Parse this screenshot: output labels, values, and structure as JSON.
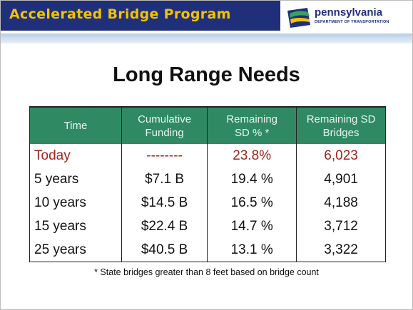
{
  "header": {
    "title": "Accelerated Bridge Program",
    "logo": {
      "name": "pennsylvania",
      "subtitle": "DEPARTMENT OF TRANSPORTATION"
    }
  },
  "slide": {
    "title": "Long Range Needs",
    "table": {
      "columns": [
        [
          "Time"
        ],
        [
          "Cumulative",
          "Funding"
        ],
        [
          "Remaining",
          "SD % *"
        ],
        [
          "Remaining SD",
          "Bridges"
        ]
      ],
      "rows": [
        [
          "Today",
          "--------",
          "23.8%",
          "6,023"
        ],
        [
          "5 years",
          "$7.1 B",
          "19.4 %",
          "4,901"
        ],
        [
          "10 years",
          "$14.5 B",
          "16.5 %",
          "4,188"
        ],
        [
          "15 years",
          "$22.4 B",
          "14.7 %",
          "3,712"
        ],
        [
          "25 years",
          "$40.5 B",
          "13.1 %",
          "3,322"
        ]
      ]
    },
    "footnote": "* State bridges greater than 8 feet based on bridge count"
  }
}
